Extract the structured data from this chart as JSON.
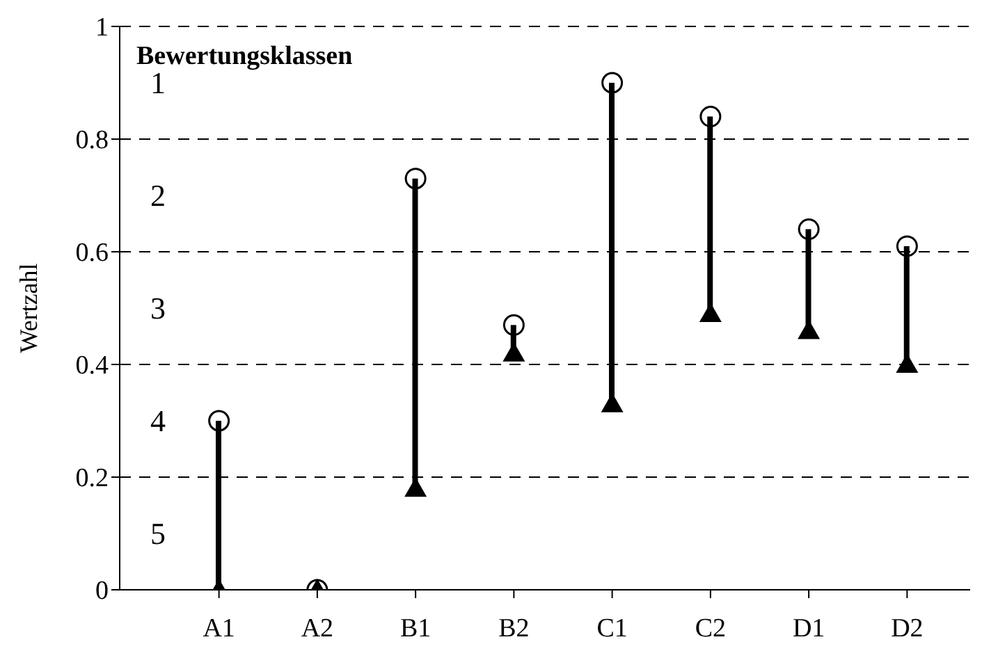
{
  "chart_data": {
    "type": "bar",
    "ylabel": "Wertzahl",
    "categories": [
      "A1",
      "A2",
      "B1",
      "B2",
      "C1",
      "C2",
      "D1",
      "D2"
    ],
    "ylim": [
      0,
      1
    ],
    "yticks": [
      0,
      0.2,
      0.4,
      0.6,
      0.8,
      1
    ],
    "grid": "y",
    "line_style": "dashed",
    "annotations": [
      "Bewertungsklassen",
      "1",
      "2",
      "3",
      "4",
      "5"
    ],
    "series": [
      {
        "color": "#000000",
        "base": [
          0,
          null,
          0.18,
          0.42,
          0.33,
          0.49,
          0.46,
          0.4
        ],
        "values": [
          0.3,
          null,
          0.55,
          0.05,
          0.57,
          0.35,
          0.18,
          0.21
        ]
      },
      {
        "type": "scatter",
        "marker": "circle",
        "color": "#000000",
        "values": [
          0.3,
          0,
          0.73,
          0.47,
          0.9,
          0.84,
          0.64,
          0.61
        ]
      },
      {
        "type": "scatter",
        "marker": "triangle",
        "color": "#000000",
        "values": [
          0,
          0,
          0.18,
          0.42,
          0.33,
          0.49,
          0.46,
          0.4
        ]
      }
    ]
  }
}
